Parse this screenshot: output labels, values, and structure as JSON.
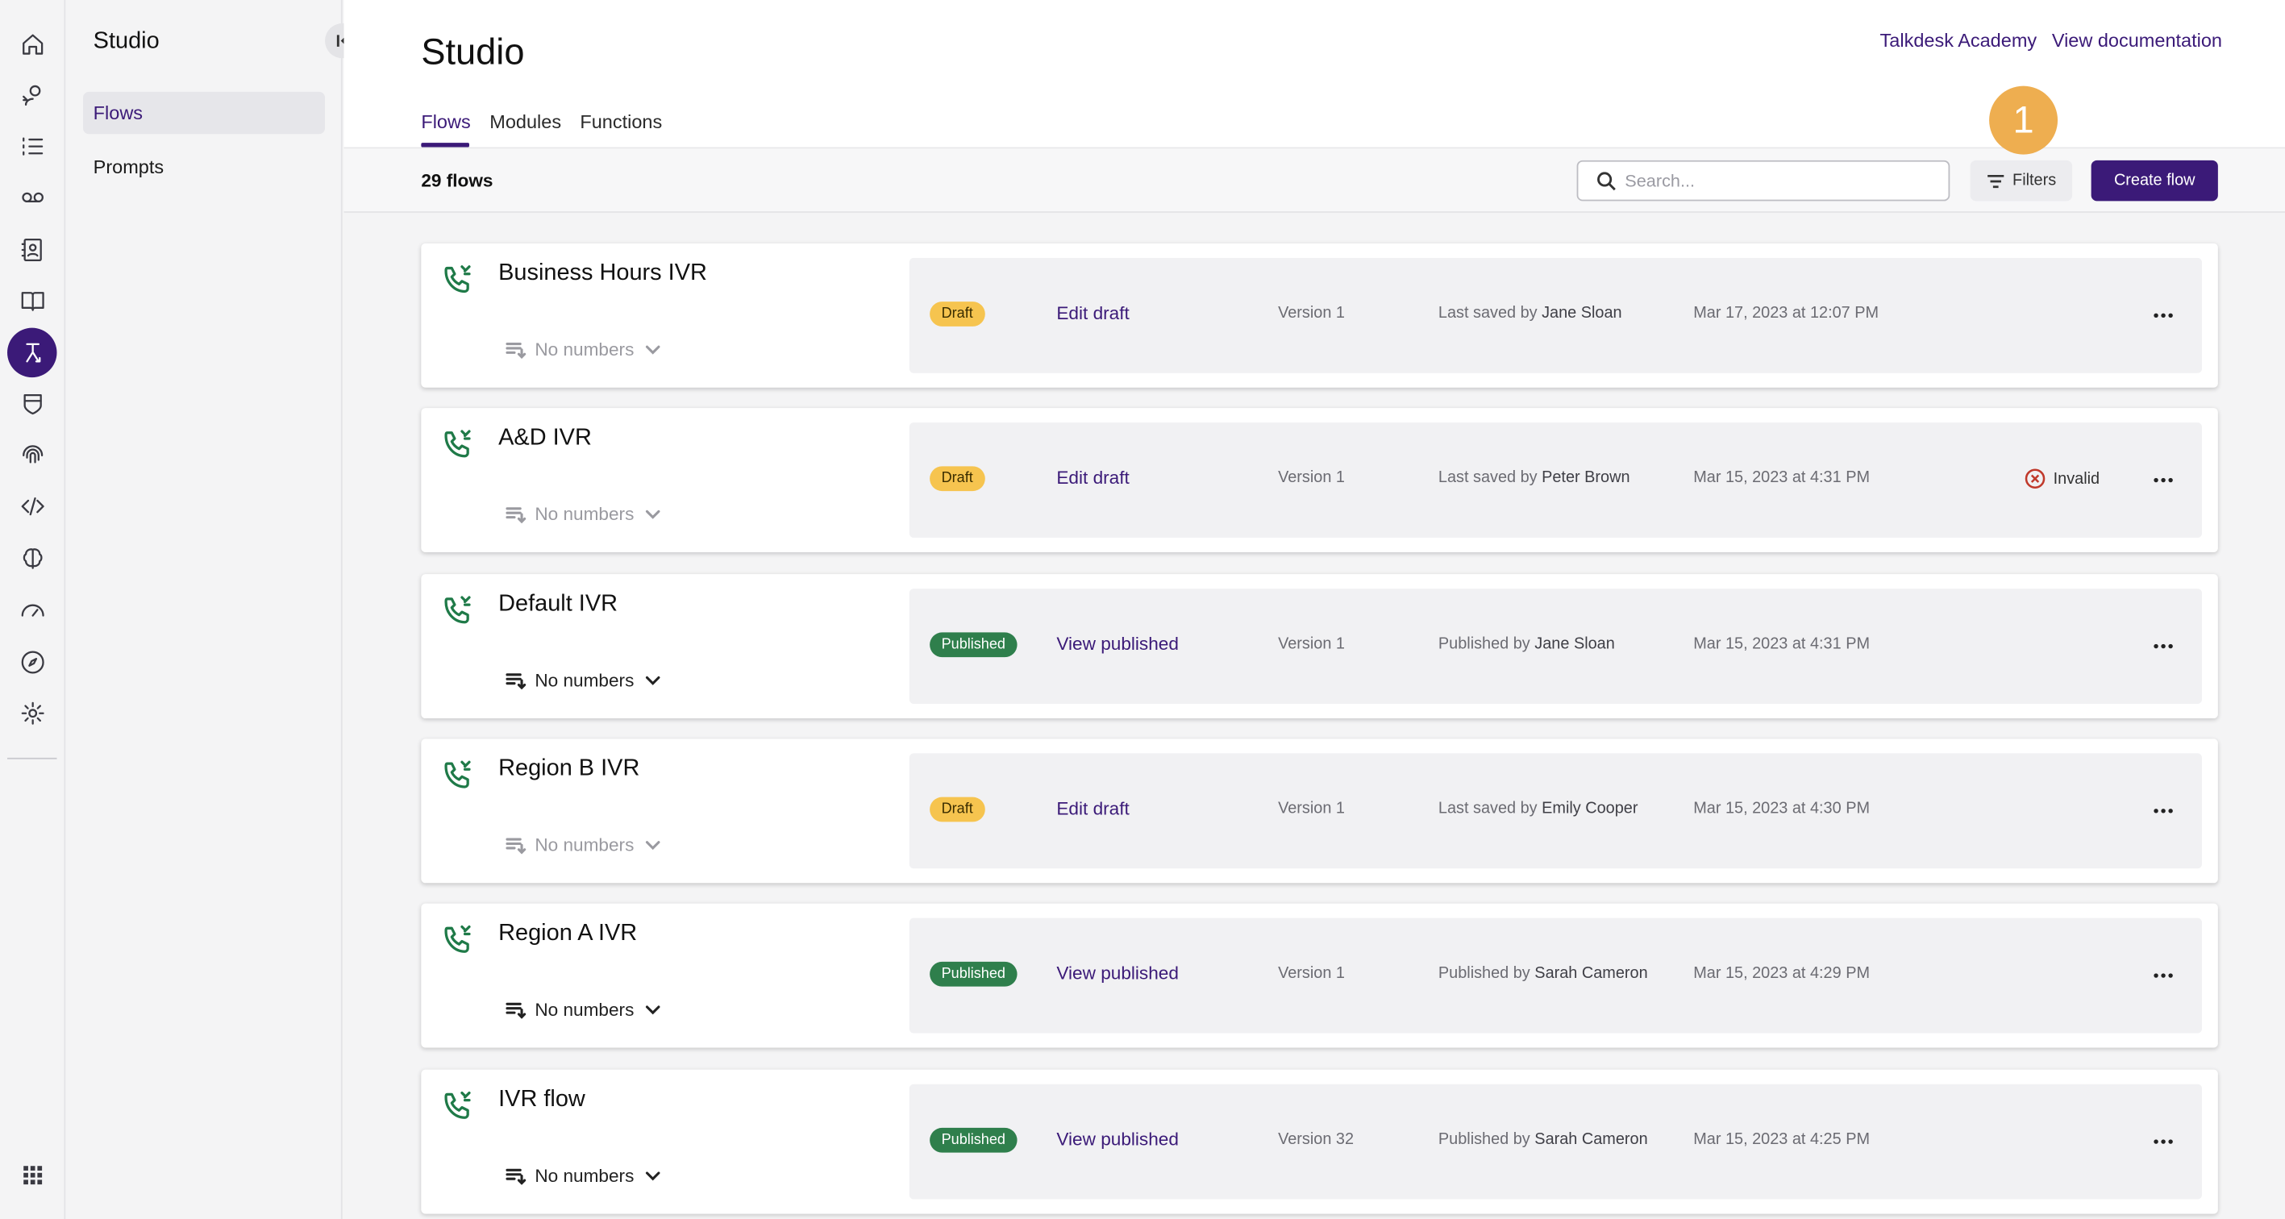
{
  "app": {
    "title": "Studio",
    "page_title": "Studio"
  },
  "rail": {
    "icons": [
      "home-icon",
      "agent-icon",
      "list-icon",
      "voicemail-icon",
      "contacts-icon",
      "book-icon",
      "studio-icon",
      "shield-icon",
      "fingerprint-icon",
      "code-icon",
      "brain-icon",
      "gauge-icon",
      "compass-icon",
      "gear-icon",
      "apps-grid-icon"
    ],
    "active": "studio-icon"
  },
  "sidenav": {
    "title": "Studio",
    "items": [
      {
        "label": "Flows",
        "active": true
      },
      {
        "label": "Prompts",
        "active": false
      }
    ]
  },
  "header": {
    "links": [
      "Talkdesk Academy",
      "View documentation"
    ],
    "tabs": [
      {
        "label": "Flows",
        "active": true
      },
      {
        "label": "Modules",
        "active": false
      },
      {
        "label": "Functions",
        "active": false
      }
    ]
  },
  "toolbar": {
    "count": "29 flows",
    "search_placeholder": "Search...",
    "filters_label": "Filters",
    "create_label": "Create flow",
    "marker": "1"
  },
  "flows": [
    {
      "name": "Business Hours IVR",
      "numbers": "No numbers",
      "numbers_dim": true,
      "status": "Draft",
      "action": "Edit draft",
      "version": "Version 1",
      "saved_prefix": "Last saved by",
      "saved_by": "Jane Sloan",
      "date": "Mar 17, 2023 at 12:07 PM",
      "invalid": ""
    },
    {
      "name": "A&D IVR",
      "numbers": "No numbers",
      "numbers_dim": true,
      "status": "Draft",
      "action": "Edit draft",
      "version": "Version 1",
      "saved_prefix": "Last saved by",
      "saved_by": "Peter Brown",
      "date": "Mar 15, 2023 at 4:31 PM",
      "invalid": "Invalid"
    },
    {
      "name": "Default IVR",
      "numbers": "No numbers",
      "numbers_dim": false,
      "status": "Published",
      "action": "View published",
      "version": "Version 1",
      "saved_prefix": "Published by",
      "saved_by": "Jane Sloan",
      "date": "Mar 15, 2023 at 4:31 PM",
      "invalid": ""
    },
    {
      "name": "Region B IVR",
      "numbers": "No numbers",
      "numbers_dim": true,
      "status": "Draft",
      "action": "Edit draft",
      "version": "Version 1",
      "saved_prefix": "Last saved by",
      "saved_by": "Emily Cooper",
      "date": "Mar 15, 2023 at 4:30 PM",
      "invalid": ""
    },
    {
      "name": "Region A IVR",
      "numbers": "No numbers",
      "numbers_dim": false,
      "status": "Published",
      "action": "View published",
      "version": "Version 1",
      "saved_prefix": "Published by",
      "saved_by": "Sarah Cameron",
      "date": "Mar 15, 2023 at 4:29 PM",
      "invalid": ""
    },
    {
      "name": "IVR flow",
      "numbers": "No numbers",
      "numbers_dim": false,
      "status": "Published",
      "action": "View published",
      "version": "Version 32",
      "saved_prefix": "Published by",
      "saved_by": "Sarah Cameron",
      "date": "Mar 15, 2023 at 4:25 PM",
      "invalid": ""
    }
  ],
  "colors": {
    "brand": "#3b1a78",
    "draft": "#f6c44f",
    "published": "#2f7f4c",
    "marker": "#eeae50",
    "flow_icon": "#1f7a48"
  }
}
